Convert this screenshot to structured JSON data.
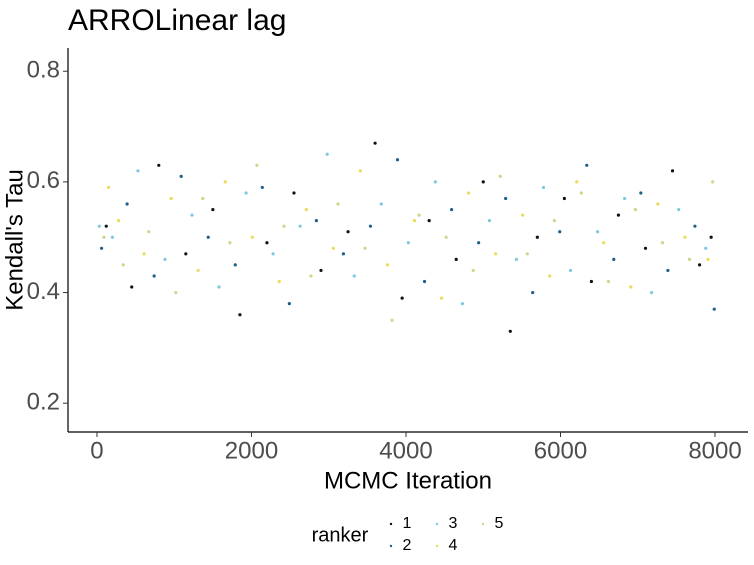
{
  "chart_data": {
    "type": "scatter",
    "title": "ARROLinear lag",
    "x_label": "MCMC Iteration",
    "y_label": "Kendall's Tau",
    "legend_title": "ranker",
    "xlim": [
      -375,
      8427
    ],
    "xticks": [
      0,
      2000,
      4000,
      6000,
      8000
    ],
    "ylim": [
      0.148,
      0.842
    ],
    "yticks": [
      0.2,
      0.4,
      0.6,
      0.8
    ],
    "grid": false,
    "legend_position": "bottom",
    "series": [
      {
        "name": "1",
        "color": "#111111",
        "x": [
          120,
          450,
          800,
          1150,
          1500,
          1850,
          2200,
          2550,
          2900,
          3250,
          3600,
          3950,
          4300,
          4650,
          5000,
          5350,
          5700,
          6050,
          6400,
          6750,
          7100,
          7450,
          7800,
          7950
        ],
        "values": [
          0.52,
          0.41,
          0.63,
          0.47,
          0.55,
          0.36,
          0.49,
          0.58,
          0.44,
          0.51,
          0.67,
          0.39,
          0.53,
          0.46,
          0.6,
          0.33,
          0.5,
          0.57,
          0.42,
          0.54,
          0.48,
          0.62,
          0.45,
          0.5
        ]
      },
      {
        "name": "2",
        "color": "#1f5f8b",
        "x": [
          60,
          390,
          740,
          1090,
          1440,
          1790,
          2140,
          2490,
          2840,
          3190,
          3540,
          3890,
          4240,
          4590,
          4940,
          5290,
          5640,
          5990,
          6340,
          6690,
          7040,
          7390,
          7740,
          7990
        ],
        "values": [
          0.48,
          0.56,
          0.43,
          0.61,
          0.5,
          0.45,
          0.59,
          0.38,
          0.53,
          0.47,
          0.52,
          0.64,
          0.42,
          0.55,
          0.49,
          0.57,
          0.4,
          0.51,
          0.63,
          0.46,
          0.58,
          0.44,
          0.52,
          0.37
        ]
      },
      {
        "name": "3",
        "color": "#7ec8e3",
        "x": [
          200,
          530,
          880,
          1230,
          1580,
          1930,
          2280,
          2630,
          2980,
          3330,
          3680,
          4030,
          4380,
          4730,
          5080,
          5430,
          5780,
          6130,
          6480,
          6830,
          7180,
          7530,
          7880,
          30
        ],
        "values": [
          0.5,
          0.62,
          0.46,
          0.54,
          0.41,
          0.58,
          0.47,
          0.52,
          0.65,
          0.43,
          0.56,
          0.49,
          0.6,
          0.38,
          0.53,
          0.46,
          0.59,
          0.44,
          0.51,
          0.57,
          0.4,
          0.55,
          0.48,
          0.52
        ]
      },
      {
        "name": "4",
        "color": "#e8dc5a",
        "x": [
          280,
          610,
          960,
          1310,
          1660,
          2010,
          2360,
          2710,
          3060,
          3410,
          3760,
          4110,
          4460,
          4810,
          5160,
          5510,
          5860,
          6210,
          6560,
          6910,
          7260,
          7610,
          7910,
          150
        ],
        "values": [
          0.53,
          0.47,
          0.57,
          0.44,
          0.6,
          0.5,
          0.42,
          0.55,
          0.48,
          0.62,
          0.45,
          0.53,
          0.39,
          0.58,
          0.47,
          0.54,
          0.43,
          0.6,
          0.49,
          0.41,
          0.56,
          0.5,
          0.46,
          0.59
        ]
      },
      {
        "name": "5",
        "color": "#c9d98a",
        "x": [
          340,
          670,
          1020,
          1370,
          1720,
          2070,
          2420,
          2770,
          3120,
          3470,
          3820,
          4170,
          4520,
          4870,
          5220,
          5570,
          5920,
          6270,
          6620,
          6970,
          7320,
          7670,
          7970,
          90
        ],
        "values": [
          0.45,
          0.51,
          0.4,
          0.57,
          0.49,
          0.63,
          0.52,
          0.43,
          0.56,
          0.48,
          0.35,
          0.54,
          0.5,
          0.44,
          0.61,
          0.47,
          0.53,
          0.58,
          0.42,
          0.55,
          0.49,
          0.46,
          0.6,
          0.5
        ]
      }
    ]
  }
}
